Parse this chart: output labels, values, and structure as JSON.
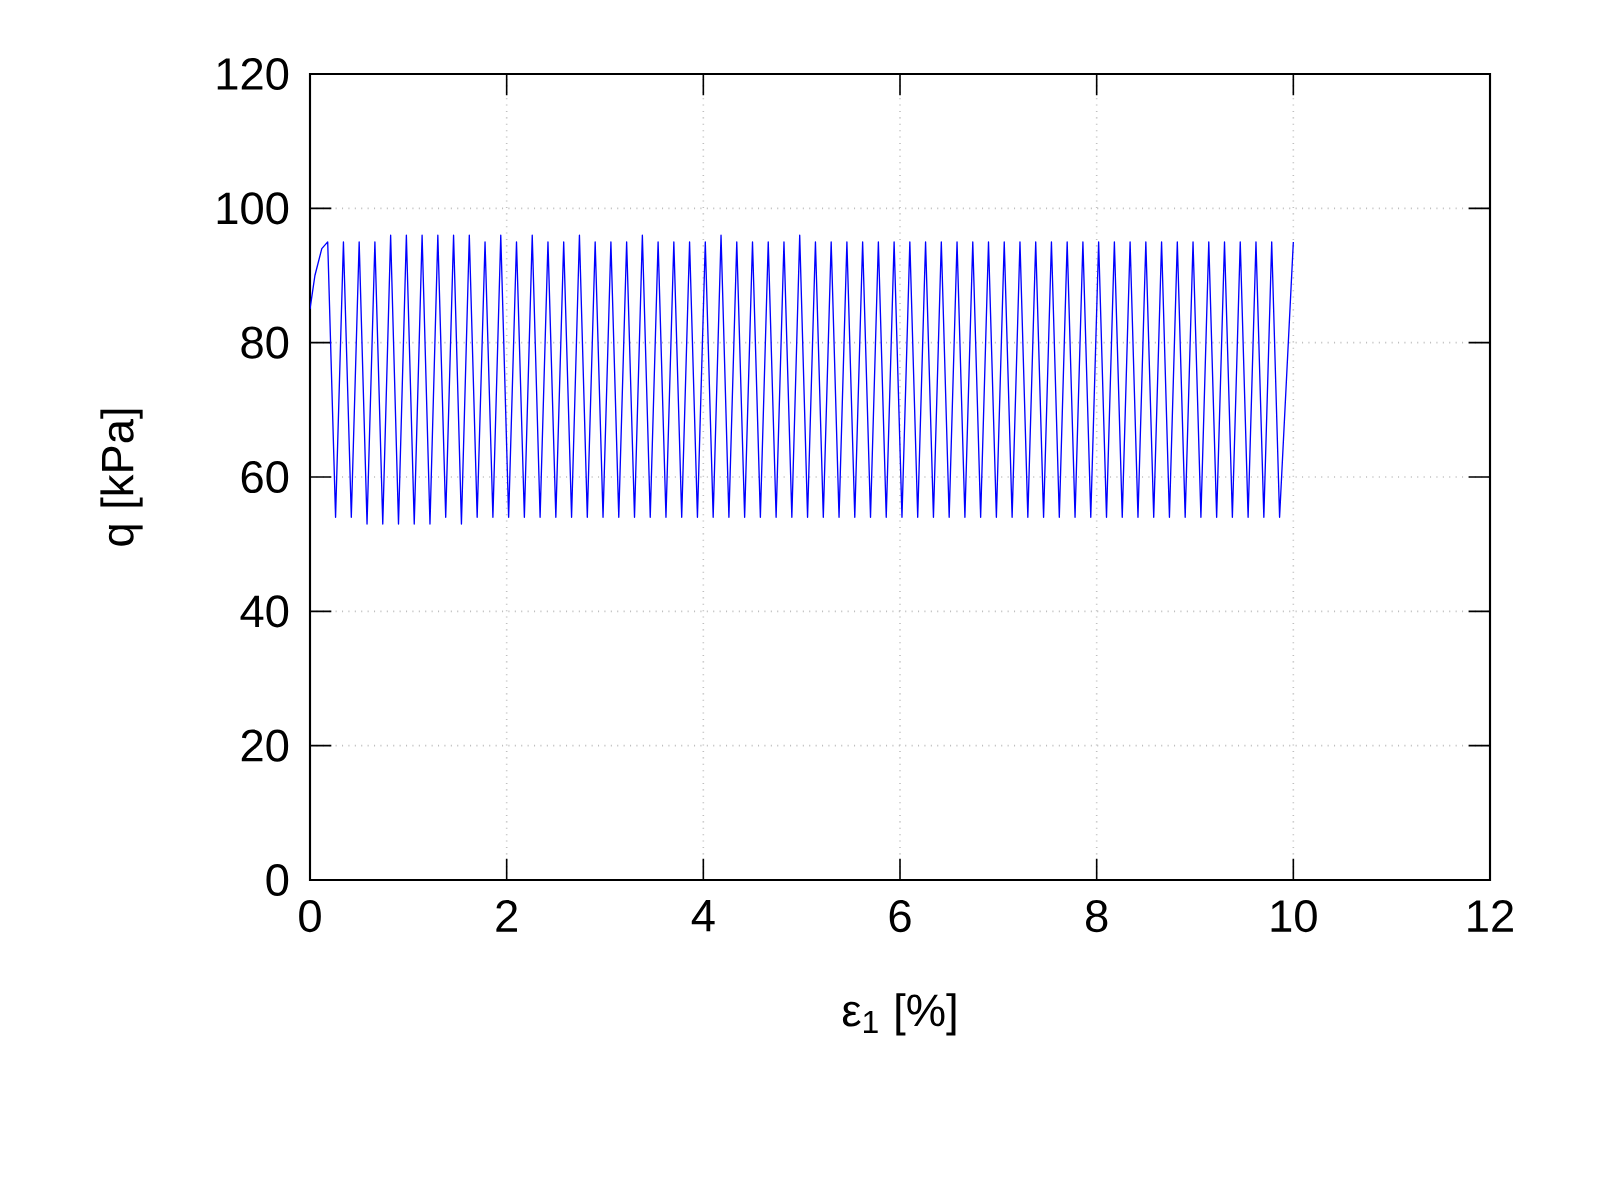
{
  "chart_data": {
    "type": "line",
    "xlabel": "ε$_{1}$ [%]",
    "ylabel": "q [kPa]",
    "xlim": [
      0,
      12
    ],
    "ylim": [
      0,
      120
    ],
    "xticks": [
      0,
      2,
      4,
      6,
      8,
      10,
      12
    ],
    "yticks": [
      0,
      20,
      40,
      60,
      80,
      100,
      120
    ],
    "grid": true,
    "marker": "none",
    "line_style": "solid",
    "x": [
      0,
      0.05,
      0.12,
      0.18,
      0.26,
      0.34,
      0.42,
      0.5,
      0.58,
      0.66,
      0.74,
      0.82,
      0.9,
      0.98,
      1.06,
      1.14,
      1.22,
      1.3,
      1.38,
      1.46,
      1.54,
      1.62,
      1.7,
      1.78,
      1.86,
      1.94,
      2.02,
      2.1,
      2.18,
      2.26,
      2.34,
      2.42,
      2.5,
      2.58,
      2.66,
      2.74,
      2.82,
      2.9,
      2.98,
      3.06,
      3.14,
      3.22,
      3.3,
      3.38,
      3.46,
      3.54,
      3.62,
      3.7,
      3.78,
      3.86,
      3.94,
      4.02,
      4.1,
      4.18,
      4.26,
      4.34,
      4.42,
      4.5,
      4.58,
      4.66,
      4.74,
      4.82,
      4.9,
      4.98,
      5.06,
      5.14,
      5.22,
      5.3,
      5.38,
      5.46,
      5.54,
      5.62,
      5.7,
      5.78,
      5.86,
      5.94,
      6.02,
      6.1,
      6.18,
      6.26,
      6.34,
      6.42,
      6.5,
      6.58,
      6.66,
      6.74,
      6.82,
      6.9,
      6.98,
      7.06,
      7.14,
      7.22,
      7.3,
      7.38,
      7.46,
      7.54,
      7.62,
      7.7,
      7.78,
      7.86,
      7.94,
      8.02,
      8.1,
      8.18,
      8.26,
      8.34,
      8.42,
      8.5,
      8.58,
      8.66,
      8.74,
      8.82,
      8.9,
      8.98,
      9.06,
      9.14,
      9.22,
      9.3,
      9.38,
      9.46,
      9.54,
      9.62,
      9.7,
      9.78,
      9.86,
      10.0
    ],
    "series": [
      {
        "color": "#0000ff",
        "values": [
          85,
          90,
          94,
          95,
          54,
          95,
          54,
          95,
          53,
          95,
          53,
          96,
          53,
          96,
          53,
          96,
          53,
          96,
          54,
          96,
          53,
          96,
          54,
          95,
          54,
          96,
          54,
          95,
          54,
          96,
          54,
          95,
          54,
          95,
          54,
          96,
          54,
          95,
          54,
          95,
          54,
          95,
          54,
          96,
          54,
          95,
          54,
          95,
          54,
          95,
          54,
          95,
          54,
          96,
          54,
          95,
          54,
          95,
          54,
          95,
          54,
          95,
          54,
          96,
          54,
          95,
          54,
          95,
          54,
          95,
          54,
          95,
          54,
          95,
          54,
          95,
          54,
          95,
          54,
          95,
          54,
          95,
          54,
          95,
          54,
          95,
          54,
          95,
          54,
          95,
          54,
          95,
          54,
          95,
          54,
          95,
          54,
          95,
          54,
          95,
          54,
          95,
          54,
          95,
          54,
          95,
          54,
          95,
          54,
          95,
          54,
          95,
          54,
          95,
          54,
          95,
          54,
          95,
          54,
          95,
          54,
          95,
          54,
          95,
          54,
          95
        ]
      }
    ]
  }
}
